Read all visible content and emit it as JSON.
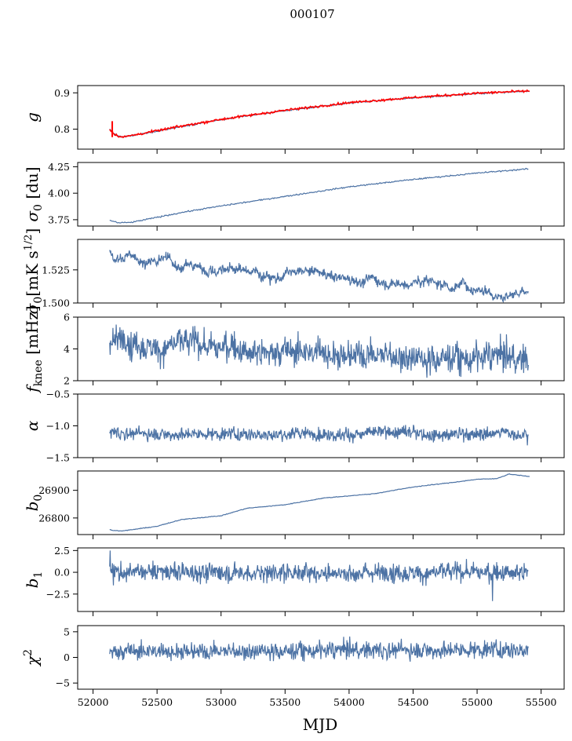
{
  "chart_data": {
    "type": "line",
    "suptitle": "000107",
    "shared_x": {
      "label": "MJD",
      "lim": [
        51880,
        55680
      ],
      "ticks": [
        52000,
        52500,
        53000,
        53500,
        54000,
        54500,
        55000,
        55500
      ],
      "tick_labels": [
        "52000",
        "52500",
        "53000",
        "53500",
        "54000",
        "54500",
        "55000",
        "55500"
      ],
      "data_range": [
        52130,
        55410
      ]
    },
    "panels": [
      {
        "id": "g",
        "ylabel": "g",
        "ylim": [
          0.745,
          0.92
        ],
        "yticks": [
          0.8,
          0.9
        ],
        "ytick_labels": [
          "0.8",
          "0.9"
        ],
        "series": [
          {
            "color": "#4c72a4",
            "style": "trend",
            "points": [
              [
                52130,
                0.8
              ],
              [
                52170,
                0.785
              ],
              [
                52230,
                0.778
              ],
              [
                52400,
                0.788
              ],
              [
                52700,
                0.808
              ],
              [
                53000,
                0.826
              ],
              [
                53500,
                0.851
              ],
              [
                54000,
                0.872
              ],
              [
                54500,
                0.886
              ],
              [
                55000,
                0.898
              ],
              [
                55410,
                0.905
              ]
            ],
            "noise": 0.001
          },
          {
            "color": "#ff0000",
            "style": "trend",
            "points": [
              [
                52130,
                0.8
              ],
              [
                52170,
                0.785
              ],
              [
                52230,
                0.778
              ],
              [
                52400,
                0.789
              ],
              [
                52700,
                0.809
              ],
              [
                53000,
                0.827
              ],
              [
                53500,
                0.852
              ],
              [
                54000,
                0.873
              ],
              [
                54500,
                0.887
              ],
              [
                55000,
                0.899
              ],
              [
                55410,
                0.905
              ]
            ],
            "noise": 0.0015,
            "spike": {
              "x": 52150,
              "ymin": 0.778,
              "ymax": 0.822
            }
          }
        ]
      },
      {
        "id": "sigma0-du",
        "ylabel": "σ0 [du]",
        "ylim": [
          3.69,
          4.29
        ],
        "yticks": [
          3.75,
          4.0,
          4.25
        ],
        "ytick_labels": [
          "3.75",
          "4.00",
          "4.25"
        ],
        "series": [
          {
            "color": "#4c72a4",
            "style": "trend",
            "points": [
              [
                52130,
                3.745
              ],
              [
                52200,
                3.72
              ],
              [
                52300,
                3.725
              ],
              [
                52700,
                3.82
              ],
              [
                53000,
                3.88
              ],
              [
                53500,
                3.97
              ],
              [
                54000,
                4.06
              ],
              [
                54500,
                4.13
              ],
              [
                55000,
                4.19
              ],
              [
                55400,
                4.23
              ]
            ],
            "noise": 0.003
          }
        ]
      },
      {
        "id": "sigma0-mk",
        "ylabel": "σ0[mK s^1/2]",
        "ylim": [
          1.5,
          1.548
        ],
        "yticks": [
          1.5,
          1.525
        ],
        "ytick_labels": [
          "1.500",
          "1.525"
        ],
        "series": [
          {
            "color": "#4c72a4",
            "style": "noisy",
            "points": [
              [
                52130,
                1.538
              ],
              [
                52500,
                1.531
              ],
              [
                53000,
                1.526
              ],
              [
                53500,
                1.522
              ],
              [
                54000,
                1.519
              ],
              [
                54500,
                1.517
              ],
              [
                55000,
                1.513
              ],
              [
                55400,
                1.508
              ]
            ],
            "noise": 0.0018,
            "wander": 0.003
          }
        ]
      },
      {
        "id": "fknee",
        "ylabel": "fknee [mHz]",
        "ylim": [
          2,
          6
        ],
        "yticks": [
          2,
          4,
          6
        ],
        "ytick_labels": [
          "2",
          "4",
          "6"
        ],
        "series": [
          {
            "color": "#4c72a4",
            "style": "noisy",
            "points": [
              [
                52130,
                4.6
              ],
              [
                53000,
                4.1
              ],
              [
                54000,
                3.8
              ],
              [
                55400,
                3.4
              ]
            ],
            "noise": 0.45,
            "wander": 0.25
          }
        ]
      },
      {
        "id": "alpha",
        "ylabel": "α",
        "ylim": [
          -1.5,
          -0.5
        ],
        "yticks": [
          -1.5,
          -1.0,
          -0.5
        ],
        "ytick_labels": [
          "−1.5",
          "−1.0",
          "−0.5"
        ],
        "series": [
          {
            "color": "#4c72a4",
            "style": "noisy",
            "points": [
              [
                52130,
                -1.12
              ],
              [
                55400,
                -1.12
              ]
            ],
            "noise": 0.05,
            "wander": 0.02
          }
        ]
      },
      {
        "id": "b0",
        "ylabel": "b0",
        "ylim": [
          26740,
          26970
        ],
        "yticks": [
          26800,
          26900
        ],
        "ytick_labels": [
          "26800",
          "26900"
        ],
        "series": [
          {
            "color": "#4c72a4",
            "style": "trend",
            "points": [
              [
                52130,
                26758
              ],
              [
                52170,
                26754
              ],
              [
                52230,
                26753
              ],
              [
                52500,
                26770
              ],
              [
                52700,
                26795
              ],
              [
                53000,
                26808
              ],
              [
                53200,
                26835
              ],
              [
                53500,
                26848
              ],
              [
                53800,
                26872
              ],
              [
                54200,
                26888
              ],
              [
                54500,
                26912
              ],
              [
                54800,
                26928
              ],
              [
                55000,
                26940
              ],
              [
                55150,
                26942
              ],
              [
                55250,
                26959
              ],
              [
                55410,
                26950
              ]
            ],
            "noise": 0.6
          }
        ]
      },
      {
        "id": "b1",
        "ylabel": "b1",
        "ylim": [
          -4.5,
          2.8
        ],
        "yticks": [
          -2.5,
          0.0,
          2.5
        ],
        "ytick_labels": [
          "−2.5",
          "0.0",
          "2.5"
        ],
        "series": [
          {
            "color": "#4c72a4",
            "style": "noisy",
            "points": [
              [
                52130,
                0.0
              ],
              [
                55400,
                0.0
              ]
            ],
            "noise": 0.55,
            "wander": 0.1,
            "spikes": [
              {
                "x": 52135,
                "y": 2.5
              },
              {
                "x": 55120,
                "y": -3.3
              }
            ]
          }
        ]
      },
      {
        "id": "chi2",
        "ylabel": "χ^2",
        "ylim": [
          -6.2,
          6.2
        ],
        "yticks": [
          -5,
          0,
          5
        ],
        "ytick_labels": [
          "−5",
          "0",
          "5"
        ],
        "series": [
          {
            "color": "#4c72a4",
            "style": "noisy",
            "points": [
              [
                52130,
                1.2
              ],
              [
                55400,
                1.6
              ]
            ],
            "noise": 0.85,
            "wander": 0.2
          }
        ]
      }
    ]
  }
}
